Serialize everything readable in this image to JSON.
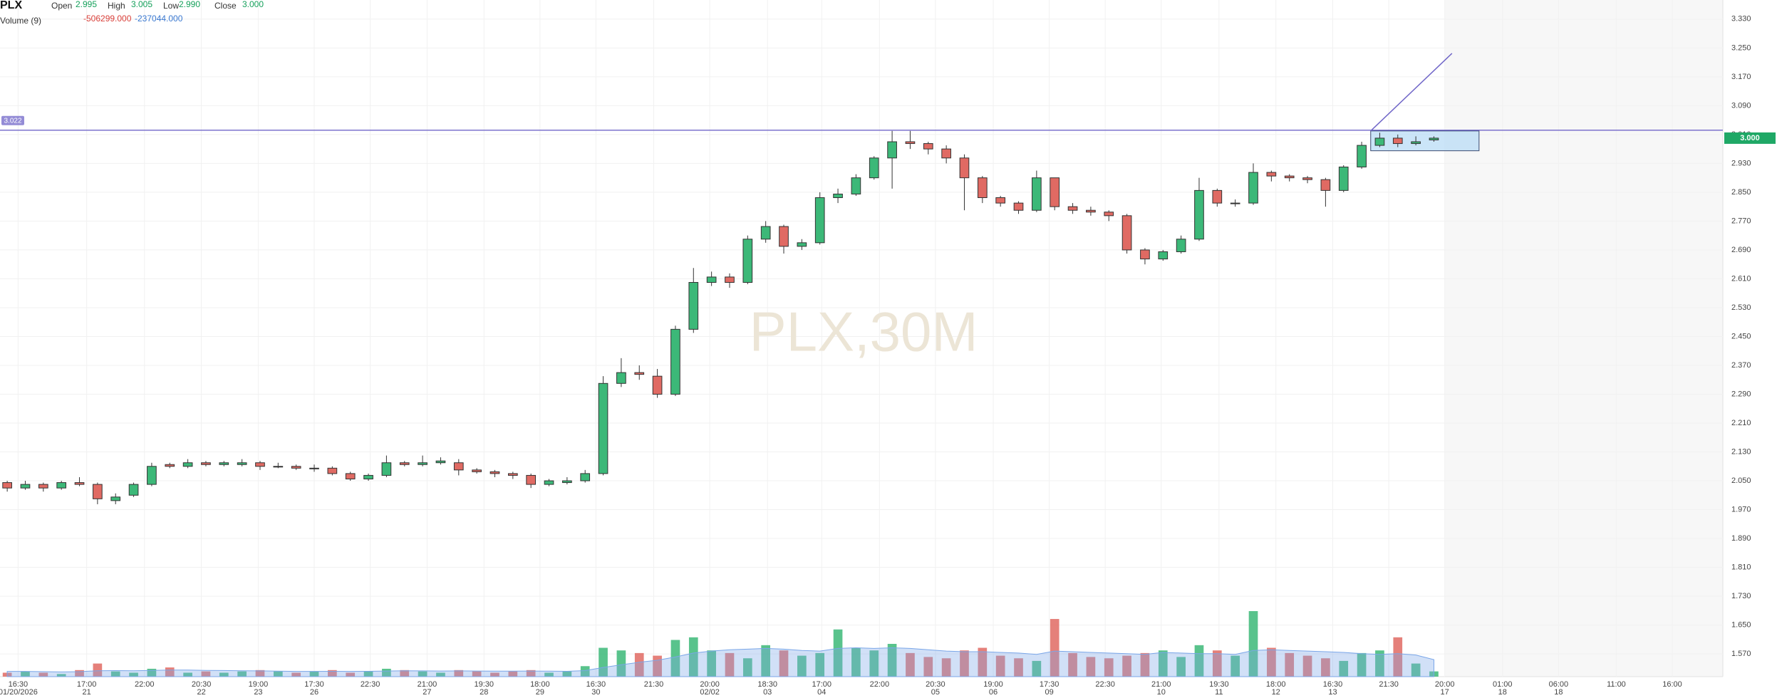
{
  "chart_data": {
    "type": "candlestick",
    "watermark": "PLX,30M",
    "legend": {
      "symbol": "PLX",
      "open_label": "Open",
      "open": "2.995",
      "high_label": "High",
      "high": "3.005",
      "low_label": "Low",
      "low": "2.990",
      "close_label": "Close",
      "close": "3.000",
      "volume_label": "Volume (9)",
      "volume_value": "-506299.000",
      "volume_ma_value": "-237044.000"
    },
    "up_color": "#3cb878",
    "down_color": "#e06a63",
    "volume_ma_color": "#7aa6e8",
    "open": [
      2.045,
      2.03,
      2.04,
      2.03,
      2.045,
      2.04,
      1.995,
      2.01,
      2.04,
      2.095,
      2.09,
      2.1,
      2.095,
      2.095,
      2.1,
      2.09,
      2.09,
      2.085,
      2.085,
      2.07,
      2.055,
      2.065,
      2.1,
      2.095,
      2.1,
      2.1,
      2.08,
      2.075,
      2.07,
      2.065,
      2.04,
      2.045,
      2.05,
      2.07,
      2.32,
      2.35,
      2.34,
      2.29,
      2.47,
      2.6,
      2.615,
      2.6,
      2.72,
      2.755,
      2.7,
      2.71,
      2.835,
      2.845,
      2.89,
      2.945,
      2.99,
      2.985,
      2.97,
      2.945,
      2.89,
      2.835,
      2.82,
      2.8,
      2.89,
      2.81,
      2.8,
      2.795,
      2.785,
      2.69,
      2.665,
      2.685,
      2.72,
      2.855,
      2.82,
      2.82,
      2.905,
      2.895,
      2.89,
      2.885,
      2.855,
      2.92,
      2.98,
      3.0,
      2.985,
      2.995
    ],
    "high": [
      2.05,
      2.05,
      2.045,
      2.05,
      2.06,
      2.045,
      2.015,
      2.045,
      2.1,
      2.1,
      2.11,
      2.105,
      2.105,
      2.11,
      2.105,
      2.1,
      2.095,
      2.095,
      2.09,
      2.075,
      2.07,
      2.12,
      2.105,
      2.12,
      2.115,
      2.11,
      2.085,
      2.08,
      2.075,
      2.07,
      2.055,
      2.06,
      2.08,
      2.34,
      2.39,
      2.37,
      2.36,
      2.48,
      2.64,
      2.63,
      2.625,
      2.73,
      2.77,
      2.76,
      2.72,
      2.85,
      2.86,
      2.9,
      2.95,
      3.02,
      3.02,
      2.99,
      2.98,
      2.955,
      2.895,
      2.84,
      2.825,
      2.91,
      2.89,
      2.82,
      2.81,
      2.8,
      2.79,
      2.695,
      2.69,
      2.73,
      2.89,
      2.86,
      2.83,
      2.93,
      2.91,
      2.9,
      2.895,
      2.89,
      2.925,
      2.99,
      3.015,
      3.01,
      3.005,
      3.005
    ],
    "low": [
      2.02,
      2.025,
      2.02,
      2.025,
      2.035,
      1.985,
      1.985,
      2.005,
      2.035,
      2.085,
      2.085,
      2.09,
      2.09,
      2.09,
      2.08,
      2.085,
      2.08,
      2.075,
      2.065,
      2.05,
      2.05,
      2.06,
      2.09,
      2.09,
      2.095,
      2.065,
      2.07,
      2.06,
      2.055,
      2.03,
      2.035,
      2.04,
      2.045,
      2.065,
      2.31,
      2.33,
      2.28,
      2.285,
      2.46,
      2.59,
      2.585,
      2.595,
      2.71,
      2.68,
      2.69,
      2.705,
      2.82,
      2.84,
      2.885,
      2.86,
      2.97,
      2.955,
      2.93,
      2.8,
      2.82,
      2.81,
      2.79,
      2.795,
      2.8,
      2.79,
      2.785,
      2.77,
      2.68,
      2.65,
      2.66,
      2.68,
      2.715,
      2.81,
      2.81,
      2.815,
      2.88,
      2.88,
      2.875,
      2.81,
      2.85,
      2.915,
      2.975,
      2.975,
      2.98,
      2.99
    ],
    "close": [
      2.03,
      2.04,
      2.03,
      2.045,
      2.04,
      2.0,
      2.005,
      2.04,
      2.09,
      2.09,
      2.1,
      2.095,
      2.1,
      2.1,
      2.09,
      2.09,
      2.085,
      2.085,
      2.07,
      2.055,
      2.065,
      2.1,
      2.095,
      2.1,
      2.105,
      2.08,
      2.075,
      2.07,
      2.065,
      2.04,
      2.05,
      2.05,
      2.07,
      2.32,
      2.35,
      2.345,
      2.29,
      2.47,
      2.6,
      2.615,
      2.6,
      2.72,
      2.755,
      2.7,
      2.71,
      2.835,
      2.845,
      2.89,
      2.945,
      2.99,
      2.985,
      2.97,
      2.945,
      2.89,
      2.835,
      2.82,
      2.8,
      2.89,
      2.81,
      2.8,
      2.795,
      2.785,
      2.69,
      2.665,
      2.685,
      2.72,
      2.855,
      2.82,
      2.82,
      2.905,
      2.895,
      2.89,
      2.885,
      2.855,
      2.92,
      2.98,
      3.0,
      2.985,
      2.99,
      3.0
    ],
    "volume": [
      3000,
      4000,
      3000,
      2000,
      5000,
      10000,
      4000,
      3000,
      6000,
      7000,
      3000,
      4000,
      3000,
      4000,
      5000,
      4000,
      3000,
      4000,
      5000,
      3000,
      4000,
      6000,
      5000,
      4000,
      3000,
      5000,
      4000,
      3000,
      4000,
      5000,
      3000,
      4000,
      8000,
      22000,
      20000,
      18000,
      16000,
      28000,
      30000,
      20000,
      18000,
      14000,
      24000,
      20000,
      16000,
      18000,
      36000,
      22000,
      20000,
      25000,
      18000,
      15000,
      14000,
      20000,
      22000,
      16000,
      14000,
      12000,
      44000,
      18000,
      15000,
      14000,
      16000,
      18000,
      20000,
      15000,
      24000,
      20000,
      16000,
      50000,
      22000,
      18000,
      16000,
      14000,
      12000,
      18000,
      20000,
      30000,
      10000,
      4000
    ],
    "volume_ma": [
      4000,
      4000,
      3800,
      3600,
      3800,
      4500,
      4600,
      4500,
      4800,
      5000,
      5000,
      4800,
      4700,
      4500,
      4400,
      4200,
      4000,
      4000,
      4100,
      4000,
      4100,
      4300,
      4500,
      4400,
      4300,
      4400,
      4300,
      4200,
      4200,
      4300,
      4200,
      4100,
      4600,
      7000,
      9000,
      11000,
      12500,
      15000,
      18000,
      19500,
      20500,
      21000,
      21500,
      21000,
      20000,
      19500,
      21500,
      22000,
      21500,
      22000,
      21500,
      20500,
      19500,
      19000,
      19000,
      18500,
      18000,
      17000,
      19500,
      19000,
      18500,
      18000,
      17500,
      17000,
      18500,
      18000,
      17500,
      17500,
      17000,
      20000,
      20500,
      20000,
      19500,
      19000,
      18500,
      17500,
      17000,
      17500,
      16500,
      13000
    ],
    "xlim": [
      -0.4,
      95.0
    ],
    "xticks": [
      {
        "value": 0.6,
        "label": "16:30",
        "date": "01/20/2026"
      },
      {
        "value": 4.4,
        "label": "17:00",
        "date": "21"
      },
      {
        "value": 7.6,
        "label": "22:00"
      },
      {
        "value": 10.75,
        "label": "20:30",
        "date": "22"
      },
      {
        "value": 13.9,
        "label": "19:00",
        "date": "23"
      },
      {
        "value": 17.0,
        "label": "17:30",
        "date": "26"
      },
      {
        "value": 20.1,
        "label": "22:30"
      },
      {
        "value": 23.25,
        "label": "21:00",
        "date": "27"
      },
      {
        "value": 26.4,
        "label": "19:30",
        "date": "28"
      },
      {
        "value": 29.5,
        "label": "18:00",
        "date": "29"
      },
      {
        "value": 32.6,
        "label": "16:30",
        "date": "30"
      },
      {
        "value": 35.8,
        "label": "21:30"
      },
      {
        "value": 38.9,
        "label": "20:00",
        "date": "02/02"
      },
      {
        "value": 42.1,
        "label": "18:30",
        "date": "03"
      },
      {
        "value": 45.1,
        "label": "17:00",
        "date": "04"
      },
      {
        "value": 48.3,
        "label": "22:00"
      },
      {
        "value": 51.4,
        "label": "20:30",
        "date": "05"
      },
      {
        "value": 54.6,
        "label": "19:00",
        "date": "06"
      },
      {
        "value": 57.7,
        "label": "17:30",
        "date": "09"
      },
      {
        "value": 60.8,
        "label": "22:30"
      },
      {
        "value": 63.9,
        "label": "21:00",
        "date": "10"
      },
      {
        "value": 67.1,
        "label": "19:30",
        "date": "11"
      },
      {
        "value": 70.25,
        "label": "18:00",
        "date": "12"
      },
      {
        "value": 73.4,
        "label": "16:30",
        "date": "13"
      },
      {
        "value": 76.5,
        "label": "21:30"
      },
      {
        "value": 79.6,
        "label": "20:00",
        "date": "17"
      },
      {
        "value": 82.8,
        "label": "01:00",
        "date": "18"
      },
      {
        "value": 85.9,
        "label": "06:00",
        "date": "18"
      },
      {
        "value": 89.1,
        "label": "11:00"
      },
      {
        "value": 92.2,
        "label": "16:00"
      }
    ],
    "ylim": [
      1.507,
      3.383
    ],
    "yticks": [
      {
        "value": 3.33,
        "label": "3.330"
      },
      {
        "value": 3.25,
        "label": "3.250"
      },
      {
        "value": 3.17,
        "label": "3.170"
      },
      {
        "value": 3.09,
        "label": "3.090"
      },
      {
        "value": 3.01,
        "label": "3.010"
      },
      {
        "value": 2.93,
        "label": "2.930"
      },
      {
        "value": 2.85,
        "label": "2.850"
      },
      {
        "value": 2.77,
        "label": "2.770"
      },
      {
        "value": 2.69,
        "label": "2.690"
      },
      {
        "value": 2.61,
        "label": "2.610"
      },
      {
        "value": 2.53,
        "label": "2.530"
      },
      {
        "value": 2.45,
        "label": "2.450"
      },
      {
        "value": 2.37,
        "label": "2.370"
      },
      {
        "value": 2.29,
        "label": "2.290"
      },
      {
        "value": 2.21,
        "label": "2.210"
      },
      {
        "value": 2.13,
        "label": "2.130"
      },
      {
        "value": 2.05,
        "label": "2.050"
      },
      {
        "value": 1.97,
        "label": "1.970"
      },
      {
        "value": 1.89,
        "label": "1.890"
      },
      {
        "value": 1.81,
        "label": "1.810"
      },
      {
        "value": 1.73,
        "label": "1.730"
      },
      {
        "value": 1.65,
        "label": "1.650"
      },
      {
        "value": 1.57,
        "label": "1.570"
      }
    ],
    "grid": true,
    "future_start": 79.6,
    "hline": {
      "value": 3.022,
      "label": "3.022",
      "color": "#7066c8"
    },
    "trendline": {
      "x": [
        75.5,
        80.0
      ],
      "y": [
        3.02,
        3.235
      ],
      "color": "#7066c8"
    },
    "box": {
      "x": [
        75.5,
        81.5
      ],
      "y": [
        2.965,
        3.02
      ],
      "color": "#b9dcf5"
    },
    "last_price": {
      "value": 3.0,
      "label": "3.000",
      "color": "#1fa866"
    }
  }
}
